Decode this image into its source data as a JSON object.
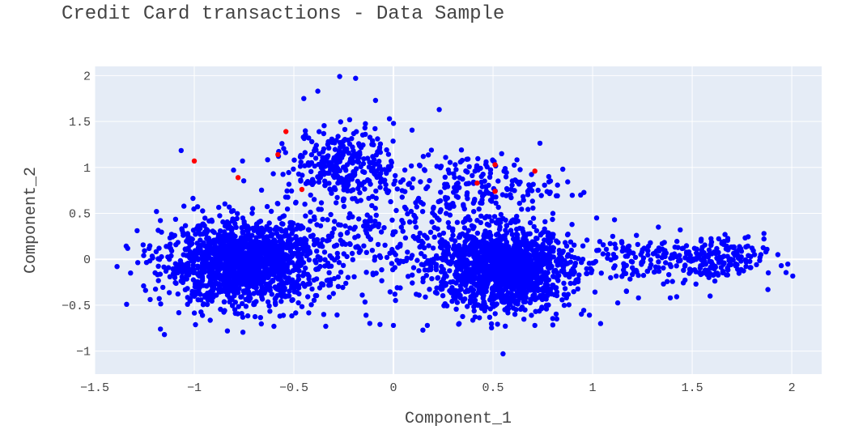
{
  "chart_data": {
    "type": "scatter",
    "title": "Credit Card transactions - Data Sample",
    "xlabel": "Component_1",
    "ylabel": "Component_2",
    "xlim": [
      -1.5,
      2.15
    ],
    "ylim": [
      -1.25,
      2.1
    ],
    "xticks": [
      -1.5,
      -1,
      -0.5,
      0,
      0.5,
      1,
      1.5,
      2
    ],
    "xtick_labels": [
      "−1.5",
      "−1",
      "−0.5",
      "0",
      "0.5",
      "1",
      "1.5",
      "2"
    ],
    "yticks": [
      -1,
      -0.5,
      0,
      0.5,
      1,
      1.5,
      2
    ],
    "ytick_labels": [
      "−1",
      "−0.5",
      "0",
      "0.5",
      "1",
      "1.5",
      "2"
    ],
    "grid": true,
    "plot_bgcolor": "#e5ecf6",
    "series": [
      {
        "color": "#0000ff",
        "clusters": [
          {
            "cx": -0.77,
            "cy": -0.05,
            "sx": 0.19,
            "sy": 0.22,
            "n": 1400
          },
          {
            "cx": 0.55,
            "cy": -0.1,
            "sx": 0.17,
            "sy": 0.22,
            "n": 1400
          },
          {
            "cx": -0.25,
            "cy": 1.05,
            "sx": 0.13,
            "sy": 0.18,
            "n": 280
          },
          {
            "cx": 1.58,
            "cy": -0.02,
            "sx": 0.14,
            "sy": 0.12,
            "n": 230
          },
          {
            "cx": 0.05,
            "cy": 0.3,
            "sx": 0.33,
            "sy": 0.42,
            "n": 280
          },
          {
            "cx": -0.4,
            "cy": 0.2,
            "sx": 0.25,
            "sy": 0.3,
            "n": 140
          },
          {
            "cx": 0.45,
            "cy": 0.8,
            "sx": 0.18,
            "sy": 0.17,
            "n": 160
          },
          {
            "cx": 1.15,
            "cy": 0.0,
            "sx": 0.12,
            "sy": 0.16,
            "n": 80
          }
        ],
        "points": [
          [
            -0.27,
            1.99
          ],
          [
            -0.19,
            1.97
          ],
          [
            0.23,
            1.63
          ],
          [
            -0.02,
            1.53
          ],
          [
            -0.38,
            1.83
          ],
          [
            -0.45,
            1.75
          ],
          [
            -0.09,
            1.73
          ],
          [
            -1.19,
            0.52
          ],
          [
            -1.32,
            -0.15
          ],
          [
            -1.34,
            -0.49
          ],
          [
            -1.17,
            -0.76
          ],
          [
            -1.15,
            -0.82
          ],
          [
            0.55,
            -1.03
          ],
          [
            0.78,
            0.9
          ],
          [
            0.85,
            0.98
          ],
          [
            0.68,
            0.81
          ],
          [
            0.94,
            0.7
          ],
          [
            1.02,
            0.45
          ],
          [
            1.11,
            0.43
          ],
          [
            1.22,
            0.26
          ],
          [
            1.29,
            0.18
          ],
          [
            1.04,
            -0.7
          ],
          [
            1.17,
            -0.35
          ],
          [
            1.23,
            -0.42
          ],
          [
            1.88,
            -0.33
          ],
          [
            1.93,
            0.05
          ],
          [
            1.87,
            0.08
          ],
          [
            1.39,
            -0.42
          ],
          [
            1.59,
            -0.4
          ],
          [
            1.33,
            0.35
          ],
          [
            1.44,
            0.32
          ],
          [
            1.86,
            0.28
          ],
          [
            -0.34,
            -0.73
          ],
          [
            -0.6,
            -0.73
          ],
          [
            -0.35,
            -0.6
          ],
          [
            0.0,
            -0.72
          ],
          [
            0.17,
            -0.72
          ],
          [
            0.33,
            -0.7
          ],
          [
            0.82,
            -0.65
          ],
          [
            0.71,
            -0.72
          ],
          [
            -0.09,
            0.92
          ],
          [
            0.15,
            1.12
          ],
          [
            0.31,
            1.03
          ],
          [
            0.33,
            0.78
          ],
          [
            0.28,
            0.94
          ],
          [
            -0.22,
            1.52
          ],
          [
            -0.41,
            1.28
          ],
          [
            -0.33,
            1.25
          ],
          [
            -0.08,
            1.17
          ],
          [
            -0.56,
            1.26
          ]
        ]
      },
      {
        "color": "#ff0000",
        "points": [
          [
            -1.0,
            1.07
          ],
          [
            -0.78,
            0.89
          ],
          [
            -0.54,
            1.39
          ],
          [
            -0.58,
            1.14
          ],
          [
            -0.46,
            0.76
          ],
          [
            0.51,
            1.03
          ],
          [
            0.42,
            0.83
          ],
          [
            0.51,
            0.74
          ],
          [
            0.71,
            0.96
          ]
        ]
      }
    ]
  }
}
